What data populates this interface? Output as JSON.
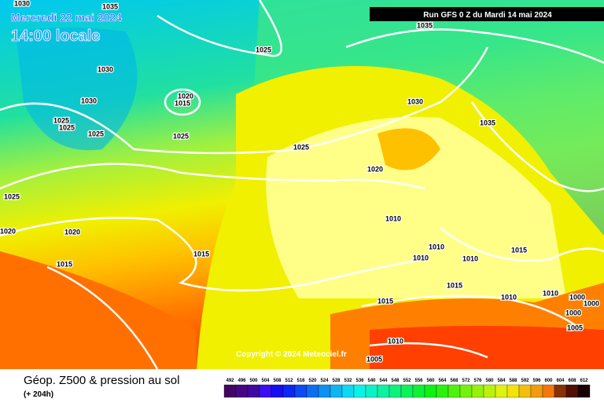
{
  "header": {
    "date": "Mercredi 22 mai 2024",
    "time": "14:00 locale",
    "run": "Run GFS 0 Z du Mardi 14 mai 2024"
  },
  "isobar_labels": [
    1030,
    1035,
    1035,
    1025,
    1030,
    1020,
    1015,
    1030,
    1030,
    1025,
    1025,
    1035,
    1025,
    1025,
    1025,
    1020,
    1025,
    1010,
    1020,
    1020,
    1015,
    1010,
    1010,
    1010,
    1015,
    1015,
    1015,
    1015,
    1010,
    1010,
    1000,
    1000,
    1000,
    1005,
    1010,
    1005
  ],
  "copyright": "Copyright © 2024 Meteociel.fr",
  "footer": {
    "title": "Géop. Z500 & pression au sol",
    "lead": "(+ 204h)"
  },
  "colorbar": {
    "labels": [
      492,
      496,
      500,
      504,
      508,
      512,
      516,
      520,
      524,
      528,
      532,
      536,
      540,
      544,
      548,
      552,
      556,
      560,
      564,
      568,
      572,
      576,
      580,
      584,
      588,
      592,
      596,
      600,
      604,
      608,
      612
    ]
  }
}
